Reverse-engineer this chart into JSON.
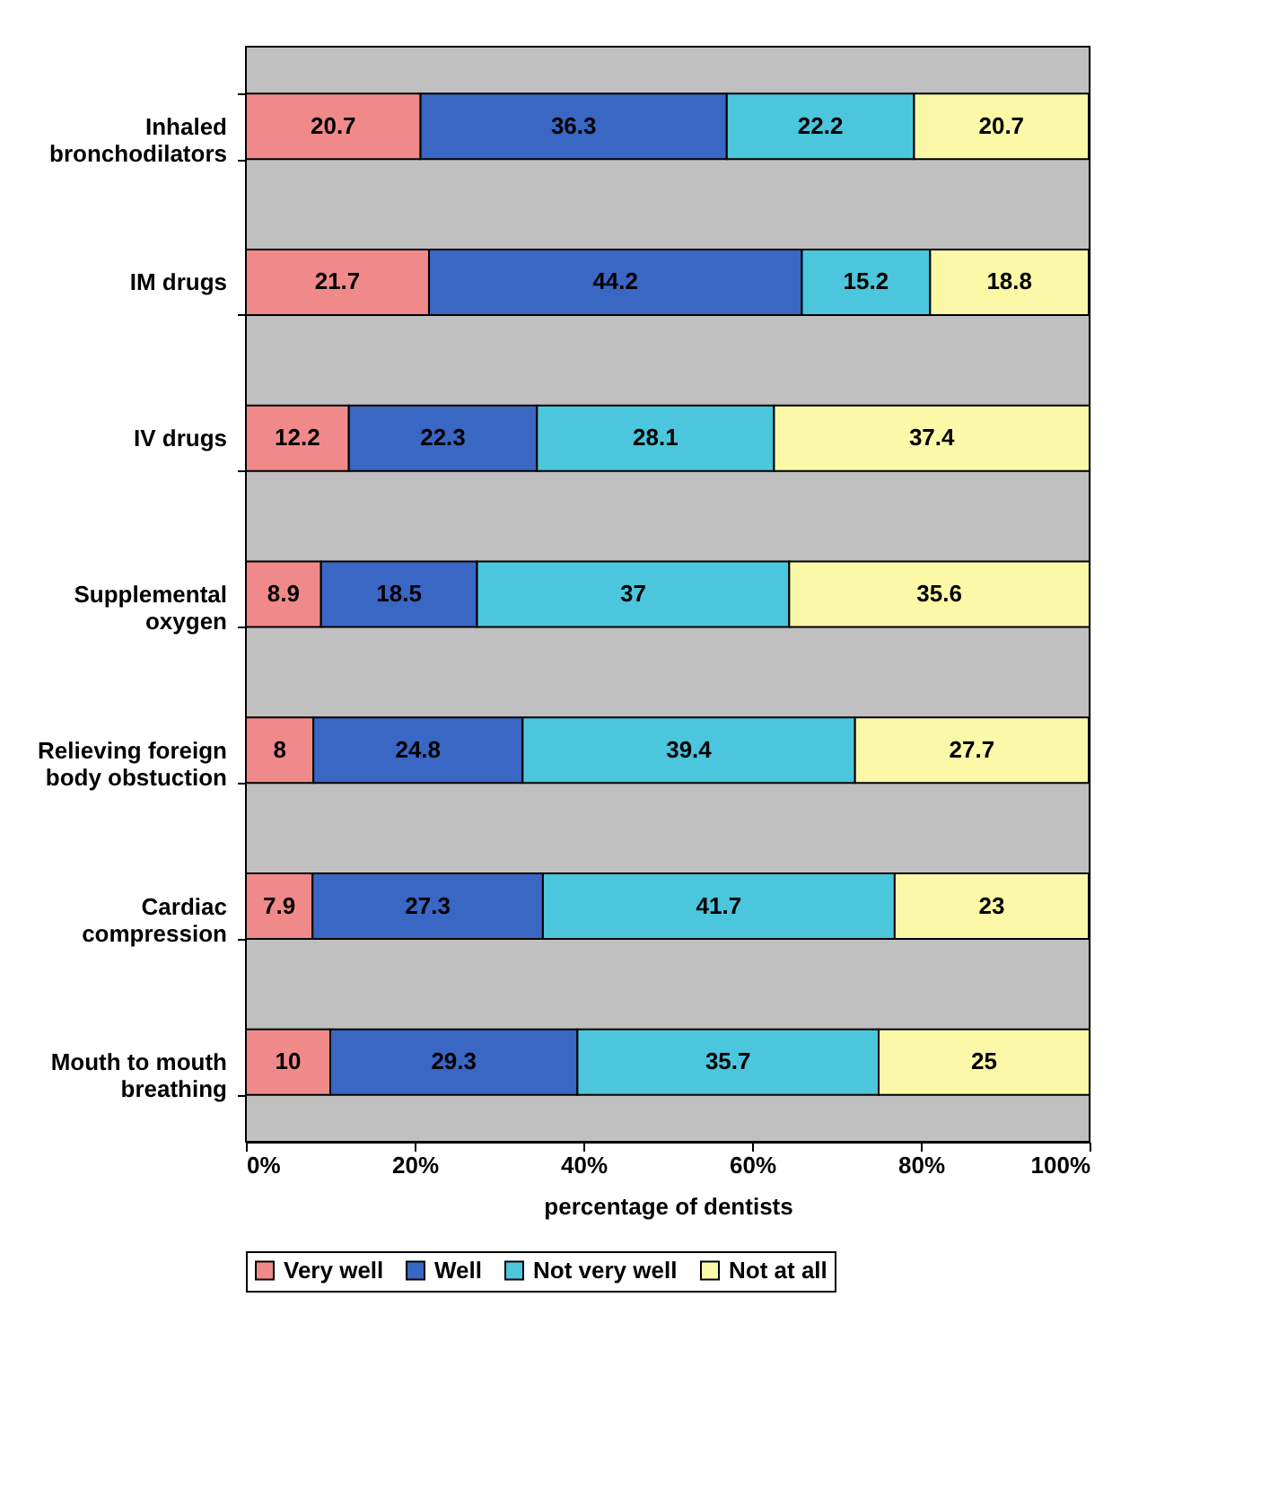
{
  "chart_data": {
    "type": "bar",
    "orientation": "horizontal",
    "stacked": true,
    "data_labels": true,
    "legend": "bottom",
    "xlabel": "percentage of dentists",
    "categories": [
      "Inhaled\nbronchodilators",
      "IM drugs",
      "IV drugs",
      "Supplemental\noxygen",
      "Relieving foreign\nbody obstuction",
      "Cardiac\ncompression",
      "Mouth to mouth\nbreathing"
    ],
    "series": [
      {
        "name": "Very well",
        "color": "#f08a8a",
        "values": [
          20.7,
          21.7,
          12.2,
          8.9,
          8,
          7.9,
          10
        ]
      },
      {
        "name": "Well",
        "color": "#3a66c4",
        "values": [
          36.3,
          44.2,
          22.3,
          18.5,
          24.8,
          27.3,
          29.3
        ]
      },
      {
        "name": "Not very well",
        "color": "#4cc6dc",
        "values": [
          22.2,
          15.2,
          28.1,
          37,
          39.4,
          41.7,
          35.7
        ]
      },
      {
        "name": "Not at all",
        "color": "#fbf8a8",
        "values": [
          20.7,
          18.8,
          37.4,
          35.6,
          27.7,
          23,
          25
        ]
      }
    ],
    "xlim": [
      0,
      100
    ],
    "xticks": [
      {
        "value": 0,
        "label": "0%"
      },
      {
        "value": 20,
        "label": "20%"
      },
      {
        "value": 40,
        "label": "40%"
      },
      {
        "value": 60,
        "label": "60%"
      },
      {
        "value": 80,
        "label": "80%"
      },
      {
        "value": 100,
        "label": "100%"
      }
    ]
  }
}
